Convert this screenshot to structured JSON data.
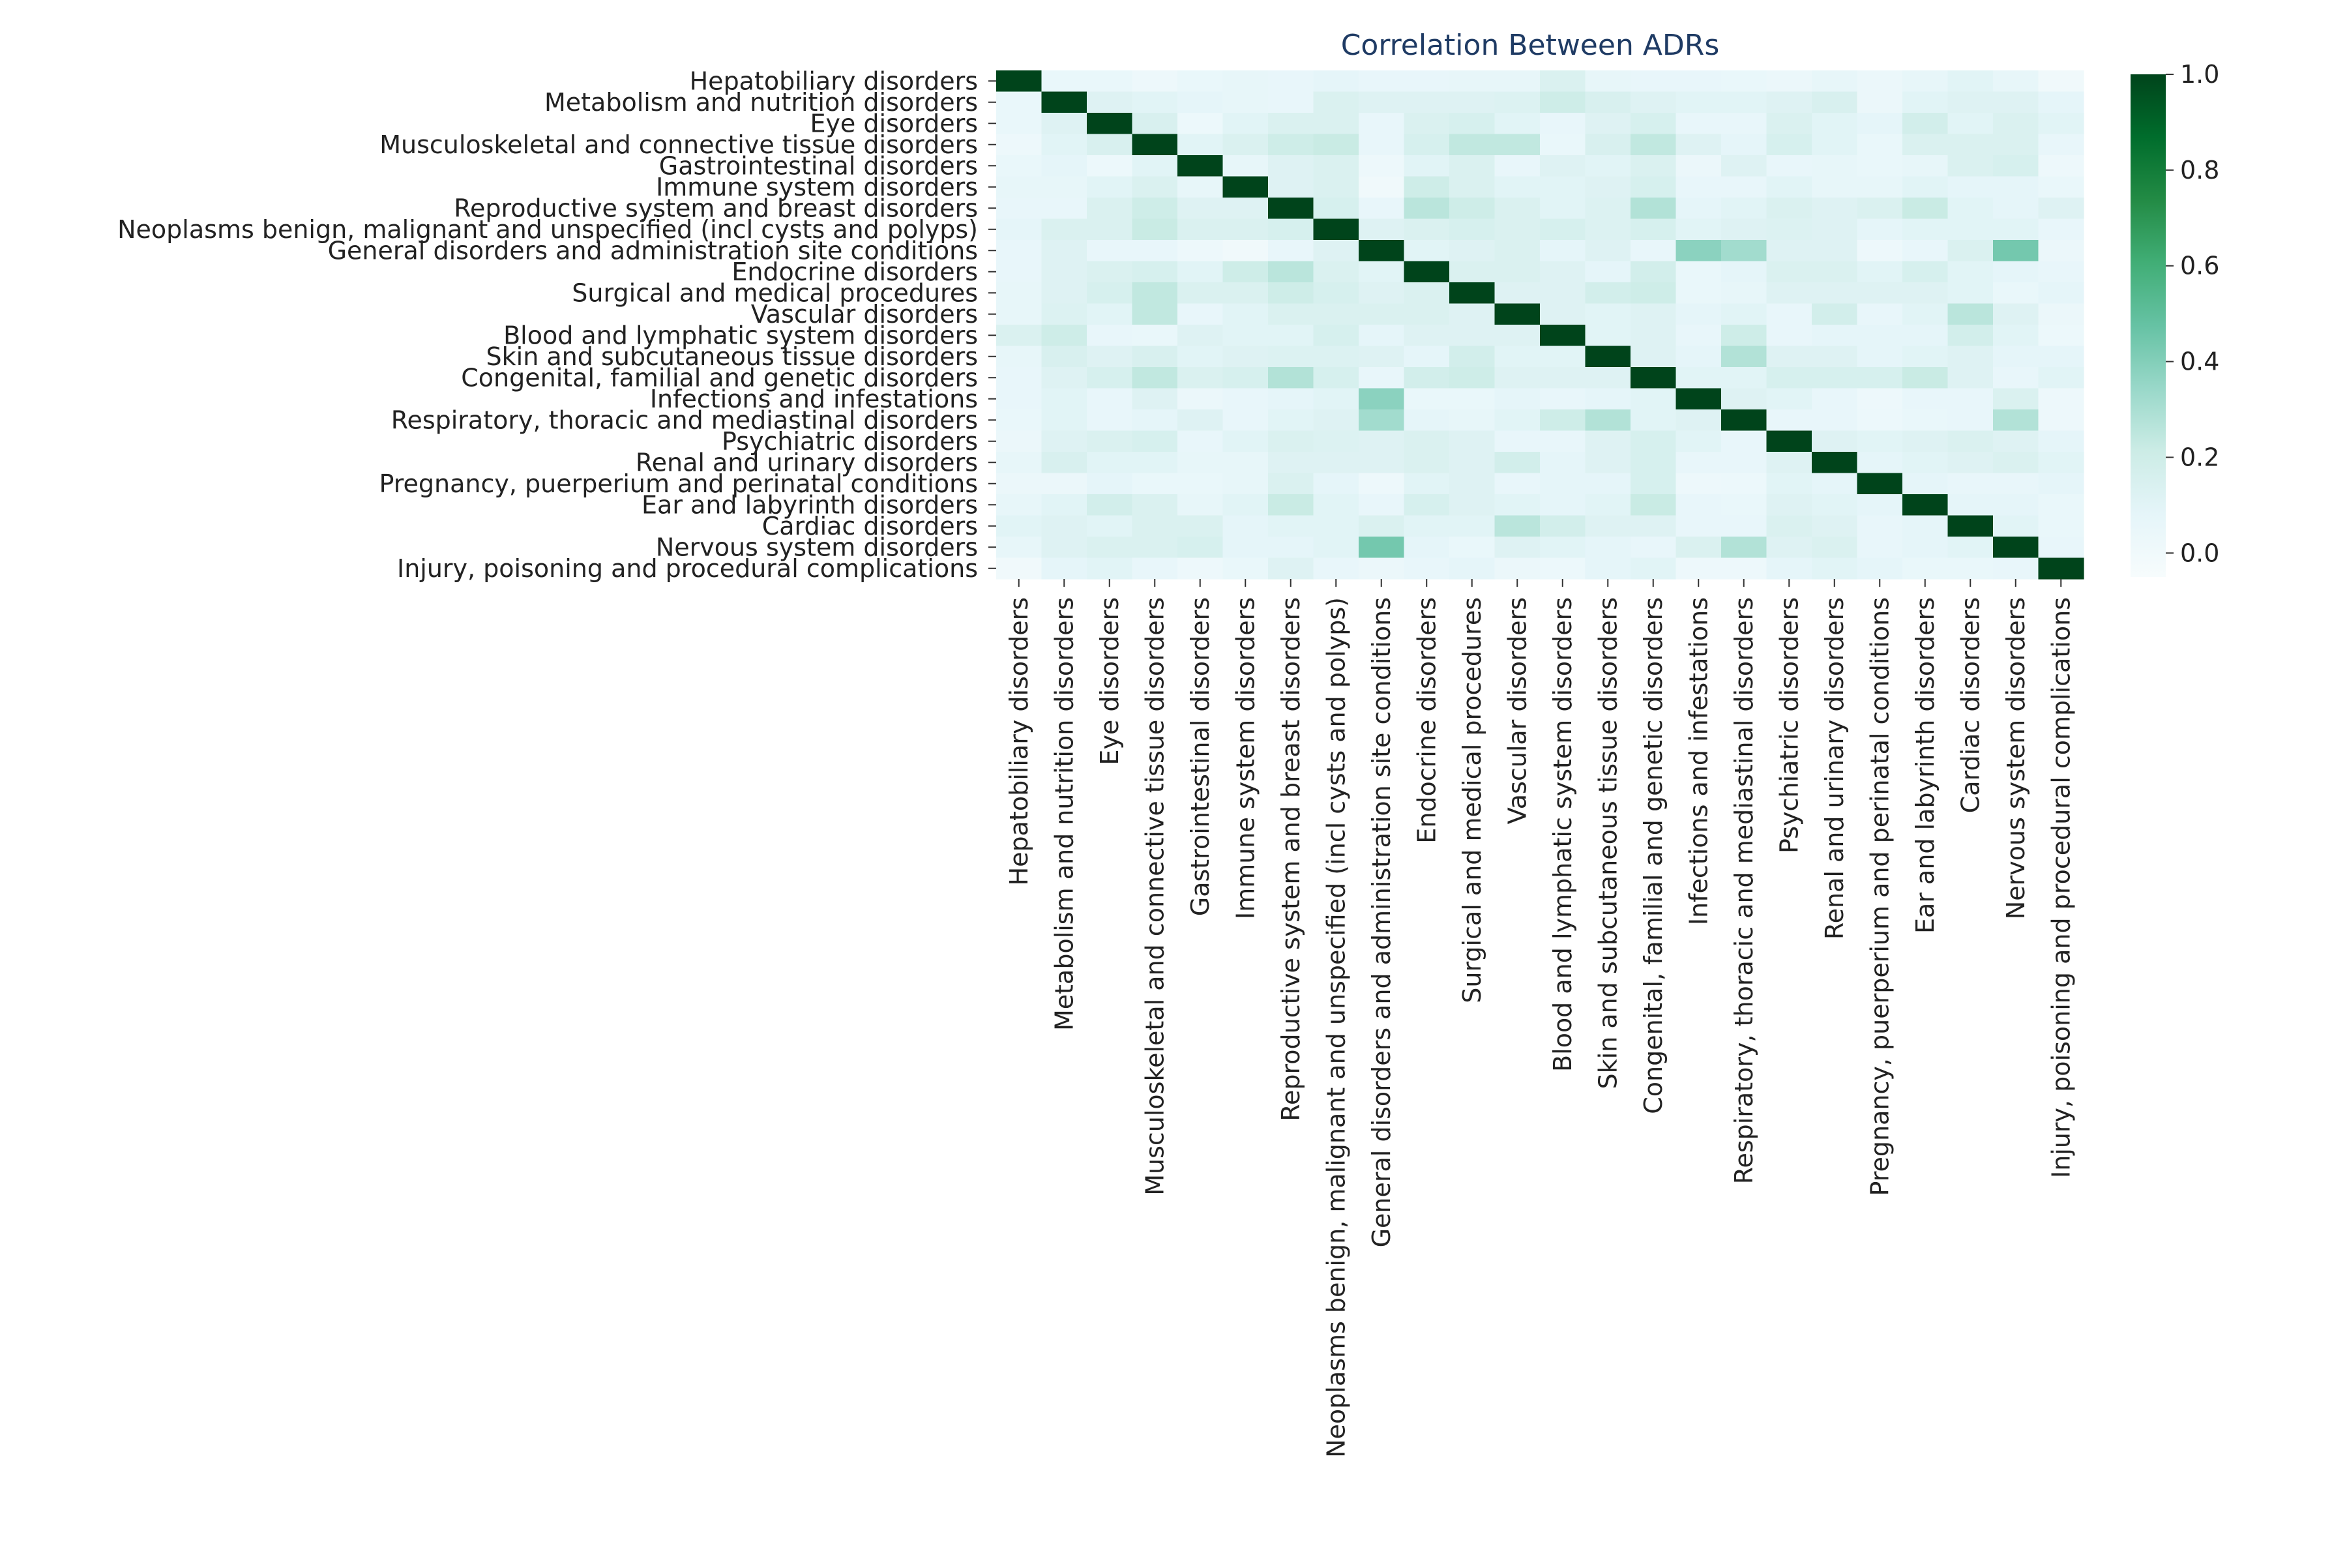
{
  "chart_data": {
    "type": "heatmap",
    "title": "Correlation Between ADRs",
    "xlabel": "",
    "ylabel": "",
    "categories": [
      "Hepatobiliary disorders",
      "Metabolism and nutrition disorders",
      "Eye disorders",
      "Musculoskeletal and connective tissue disorders",
      "Gastrointestinal disorders",
      "Immune system disorders",
      "Reproductive system and breast disorders",
      "Neoplasms benign, malignant and unspecified (incl cysts and polyps)",
      "General disorders and administration site conditions",
      "Endocrine disorders",
      "Surgical and medical procedures",
      "Vascular disorders",
      "Blood and lymphatic system disorders",
      "Skin and subcutaneous tissue disorders",
      "Congenital, familial and genetic disorders",
      "Infections and infestations",
      "Respiratory, thoracic and mediastinal disorders",
      "Psychiatric disorders",
      "Renal and urinary disorders",
      "Pregnancy, puerperium and perinatal conditions",
      "Ear and labyrinth disorders",
      "Cardiac disorders",
      "Nervous system disorders",
      "Injury, poisoning and procedural complications"
    ],
    "values": [
      [
        1.0,
        0.05,
        0.05,
        0.02,
        0.05,
        0.07,
        0.06,
        0.08,
        0.06,
        0.06,
        0.07,
        0.07,
        0.14,
        0.07,
        0.06,
        0.06,
        0.05,
        0.04,
        0.07,
        0.04,
        0.07,
        0.1,
        0.07,
        0.0
      ],
      [
        0.05,
        1.0,
        0.12,
        0.1,
        0.08,
        0.07,
        0.06,
        0.14,
        0.12,
        0.12,
        0.12,
        0.13,
        0.2,
        0.15,
        0.12,
        0.1,
        0.1,
        0.12,
        0.15,
        0.04,
        0.1,
        0.12,
        0.12,
        0.08
      ],
      [
        0.05,
        0.12,
        1.0,
        0.15,
        0.03,
        0.1,
        0.14,
        0.14,
        0.06,
        0.14,
        0.16,
        0.1,
        0.06,
        0.12,
        0.16,
        0.06,
        0.06,
        0.14,
        0.1,
        0.08,
        0.18,
        0.1,
        0.14,
        0.1
      ],
      [
        0.02,
        0.1,
        0.15,
        1.0,
        0.1,
        0.14,
        0.2,
        0.22,
        0.06,
        0.16,
        0.24,
        0.24,
        0.05,
        0.15,
        0.24,
        0.12,
        0.08,
        0.16,
        0.1,
        0.05,
        0.14,
        0.14,
        0.14,
        0.06
      ],
      [
        0.05,
        0.08,
        0.03,
        0.1,
        1.0,
        0.07,
        0.12,
        0.14,
        0.02,
        0.1,
        0.14,
        0.06,
        0.12,
        0.1,
        0.14,
        0.04,
        0.12,
        0.06,
        0.07,
        0.05,
        0.07,
        0.14,
        0.16,
        0.02
      ],
      [
        0.07,
        0.07,
        0.1,
        0.14,
        0.07,
        1.0,
        0.12,
        0.14,
        0.0,
        0.2,
        0.14,
        0.1,
        0.1,
        0.12,
        0.16,
        0.06,
        0.06,
        0.1,
        0.07,
        0.07,
        0.1,
        0.08,
        0.08,
        0.05
      ],
      [
        0.06,
        0.06,
        0.14,
        0.2,
        0.12,
        0.12,
        1.0,
        0.16,
        0.06,
        0.26,
        0.2,
        0.14,
        0.1,
        0.13,
        0.28,
        0.08,
        0.1,
        0.14,
        0.12,
        0.14,
        0.22,
        0.1,
        0.08,
        0.12
      ],
      [
        0.08,
        0.14,
        0.14,
        0.22,
        0.14,
        0.14,
        0.16,
        1.0,
        0.12,
        0.14,
        0.16,
        0.14,
        0.16,
        0.13,
        0.16,
        0.1,
        0.12,
        0.13,
        0.12,
        0.08,
        0.1,
        0.1,
        0.1,
        0.06
      ],
      [
        0.06,
        0.12,
        0.06,
        0.06,
        0.02,
        0.0,
        0.06,
        0.12,
        1.0,
        0.1,
        0.12,
        0.14,
        0.08,
        0.12,
        0.06,
        0.38,
        0.32,
        0.12,
        0.12,
        0.02,
        0.06,
        0.14,
        0.44,
        0.04
      ],
      [
        0.06,
        0.12,
        0.14,
        0.16,
        0.1,
        0.2,
        0.26,
        0.14,
        0.1,
        1.0,
        0.14,
        0.14,
        0.12,
        0.08,
        0.18,
        0.05,
        0.08,
        0.14,
        0.14,
        0.1,
        0.16,
        0.1,
        0.08,
        0.06
      ],
      [
        0.07,
        0.12,
        0.16,
        0.24,
        0.14,
        0.14,
        0.2,
        0.16,
        0.12,
        0.14,
        1.0,
        0.12,
        0.12,
        0.18,
        0.2,
        0.05,
        0.07,
        0.12,
        0.12,
        0.12,
        0.12,
        0.1,
        0.05,
        0.08
      ],
      [
        0.07,
        0.13,
        0.1,
        0.24,
        0.06,
        0.1,
        0.14,
        0.14,
        0.14,
        0.14,
        0.12,
        1.0,
        0.12,
        0.1,
        0.12,
        0.08,
        0.1,
        0.06,
        0.18,
        0.06,
        0.1,
        0.26,
        0.12,
        0.04
      ],
      [
        0.14,
        0.2,
        0.06,
        0.05,
        0.12,
        0.1,
        0.1,
        0.16,
        0.08,
        0.12,
        0.12,
        0.12,
        1.0,
        0.1,
        0.12,
        0.06,
        0.2,
        0.06,
        0.08,
        0.08,
        0.08,
        0.18,
        0.1,
        0.03
      ],
      [
        0.07,
        0.15,
        0.12,
        0.15,
        0.1,
        0.12,
        0.13,
        0.13,
        0.12,
        0.08,
        0.18,
        0.1,
        0.1,
        1.0,
        0.12,
        0.08,
        0.28,
        0.12,
        0.12,
        0.08,
        0.1,
        0.12,
        0.08,
        0.08
      ],
      [
        0.06,
        0.12,
        0.16,
        0.24,
        0.14,
        0.16,
        0.28,
        0.16,
        0.06,
        0.18,
        0.2,
        0.12,
        0.12,
        0.12,
        1.0,
        0.1,
        0.1,
        0.16,
        0.16,
        0.16,
        0.22,
        0.12,
        0.06,
        0.1
      ],
      [
        0.06,
        0.1,
        0.06,
        0.12,
        0.04,
        0.06,
        0.08,
        0.1,
        0.38,
        0.05,
        0.05,
        0.08,
        0.06,
        0.08,
        0.1,
        1.0,
        0.12,
        0.1,
        0.06,
        0.02,
        0.06,
        0.06,
        0.14,
        0.02
      ],
      [
        0.05,
        0.1,
        0.06,
        0.08,
        0.12,
        0.06,
        0.1,
        0.12,
        0.32,
        0.08,
        0.07,
        0.1,
        0.2,
        0.28,
        0.1,
        0.12,
        1.0,
        0.06,
        0.06,
        0.03,
        0.05,
        0.06,
        0.28,
        0.02
      ],
      [
        0.04,
        0.12,
        0.14,
        0.16,
        0.06,
        0.1,
        0.14,
        0.13,
        0.12,
        0.14,
        0.12,
        0.06,
        0.06,
        0.12,
        0.16,
        0.1,
        0.06,
        1.0,
        0.12,
        0.1,
        0.12,
        0.14,
        0.12,
        0.08
      ],
      [
        0.07,
        0.15,
        0.1,
        0.1,
        0.07,
        0.07,
        0.12,
        0.12,
        0.12,
        0.14,
        0.12,
        0.18,
        0.08,
        0.12,
        0.16,
        0.06,
        0.06,
        0.12,
        1.0,
        0.08,
        0.1,
        0.12,
        0.14,
        0.1
      ],
      [
        0.04,
        0.04,
        0.08,
        0.05,
        0.05,
        0.07,
        0.14,
        0.08,
        0.02,
        0.1,
        0.12,
        0.06,
        0.08,
        0.08,
        0.16,
        0.02,
        0.03,
        0.1,
        0.08,
        1.0,
        0.08,
        0.06,
        0.06,
        0.08
      ],
      [
        0.07,
        0.1,
        0.18,
        0.14,
        0.07,
        0.1,
        0.22,
        0.1,
        0.06,
        0.16,
        0.12,
        0.1,
        0.08,
        0.1,
        0.22,
        0.06,
        0.05,
        0.12,
        0.1,
        0.08,
        1.0,
        0.08,
        0.08,
        0.05
      ],
      [
        0.1,
        0.12,
        0.1,
        0.14,
        0.14,
        0.08,
        0.1,
        0.1,
        0.14,
        0.1,
        0.1,
        0.26,
        0.18,
        0.12,
        0.12,
        0.06,
        0.06,
        0.14,
        0.12,
        0.06,
        0.08,
        1.0,
        0.1,
        0.05
      ],
      [
        0.07,
        0.12,
        0.14,
        0.14,
        0.16,
        0.08,
        0.08,
        0.1,
        0.44,
        0.08,
        0.05,
        0.12,
        0.1,
        0.08,
        0.06,
        0.14,
        0.28,
        0.12,
        0.14,
        0.06,
        0.08,
        0.1,
        1.0,
        0.06
      ],
      [
        0.0,
        0.08,
        0.1,
        0.06,
        0.02,
        0.05,
        0.12,
        0.06,
        0.04,
        0.06,
        0.08,
        0.04,
        0.03,
        0.08,
        0.1,
        0.02,
        0.02,
        0.08,
        0.1,
        0.08,
        0.05,
        0.05,
        0.06,
        1.0
      ]
    ],
    "colorbar": {
      "min": -0.05,
      "max": 1.0,
      "ticks": [
        "0.0",
        "0.2",
        "0.4",
        "0.6",
        "0.8",
        "1.0"
      ]
    },
    "colormap": "BuGn",
    "grid": false
  },
  "colors": {
    "title": "#1f3b64",
    "text": "#222222",
    "tick": "#333333"
  }
}
